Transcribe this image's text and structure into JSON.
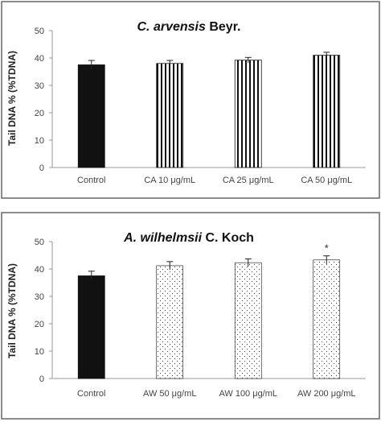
{
  "chart_data": [
    {
      "type": "bar",
      "title_italic": "C. arvensis",
      "title_rest": " Beyr.",
      "ylabel": "Tail DNA % (%TDNA)",
      "xlabel": "",
      "ylim": [
        0,
        50
      ],
      "yticks": [
        0,
        10,
        20,
        30,
        40,
        50
      ],
      "grid": false,
      "legend": "none",
      "categories": [
        "Control",
        "CA 10 μg/mL",
        "CA 25 μg/mL",
        "CA 50 μg/mL"
      ],
      "values": [
        37.5,
        38.0,
        39.2,
        41.0
      ],
      "errors": [
        1.6,
        1.1,
        1.0,
        1.1
      ],
      "fills": [
        "solid",
        "vstripes",
        "vstripes",
        "vstripes"
      ],
      "annotations": [
        "",
        "",
        "",
        ""
      ]
    },
    {
      "type": "bar",
      "title_italic": "A. wilhelmsii",
      "title_rest": " C. Koch",
      "ylabel": "Tail DNA % (%TDNA)",
      "xlabel": "",
      "ylim": [
        0,
        50
      ],
      "yticks": [
        0,
        10,
        20,
        30,
        40,
        50
      ],
      "grid": false,
      "legend": "none",
      "categories": [
        "Control",
        "AW 50 μg/mL",
        "AW 100 μg/mL",
        "AW 200 μg/mL"
      ],
      "values": [
        37.5,
        41.2,
        42.3,
        43.3
      ],
      "errors": [
        1.7,
        1.5,
        1.4,
        1.5
      ],
      "fills": [
        "solid",
        "dots",
        "dots",
        "dots"
      ],
      "annotations": [
        "",
        "",
        "",
        "*"
      ]
    }
  ],
  "colors": {
    "bar": "#111111",
    "axis": "#9a9a9a",
    "frame": "#666666",
    "text": "#444444"
  }
}
